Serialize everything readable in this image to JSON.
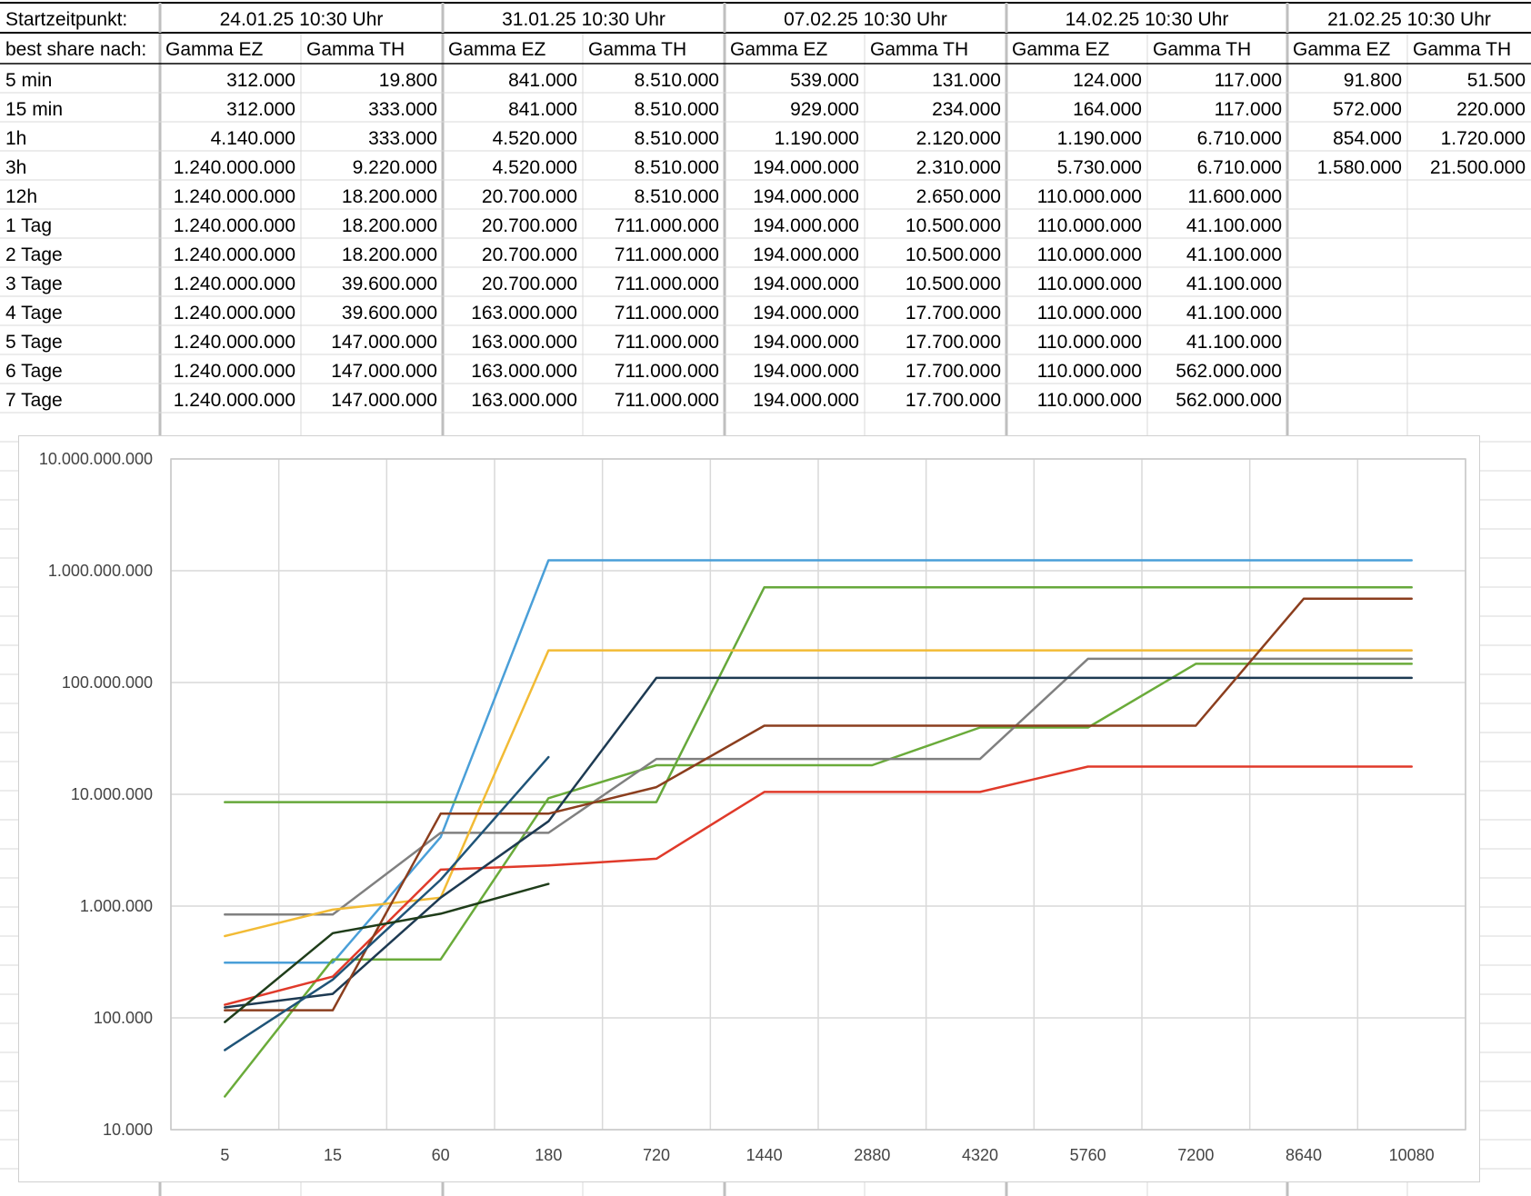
{
  "sheet": {
    "row1_label": "Startzeitpunkt:",
    "row2_label": "best share nach:",
    "start_dates": [
      "24.01.25 10:30 Uhr",
      "31.01.25 10:30 Uhr",
      "07.02.25 10:30 Uhr",
      "14.02.25 10:30 Uhr",
      "21.02.25 10:30 Uhr"
    ],
    "col_headers": [
      "Gamma  EZ",
      "Gamma TH",
      "Gamma  EZ",
      "Gamma TH",
      "Gamma  EZ",
      "Gamma TH",
      "Gamma  EZ",
      "Gamma TH",
      "Gamma  EZ",
      "Gamma TH"
    ],
    "rows": [
      {
        "label": "5 min",
        "values": [
          "312.000",
          "19.800",
          "841.000",
          "8.510.000",
          "539.000",
          "131.000",
          "124.000",
          "117.000",
          "91.800",
          "51.500"
        ]
      },
      {
        "label": "15 min",
        "values": [
          "312.000",
          "333.000",
          "841.000",
          "8.510.000",
          "929.000",
          "234.000",
          "164.000",
          "117.000",
          "572.000",
          "220.000"
        ]
      },
      {
        "label": "1h",
        "values": [
          "4.140.000",
          "333.000",
          "4.520.000",
          "8.510.000",
          "1.190.000",
          "2.120.000",
          "1.190.000",
          "6.710.000",
          "854.000",
          "1.720.000"
        ]
      },
      {
        "label": "3h",
        "values": [
          "1.240.000.000",
          "9.220.000",
          "4.520.000",
          "8.510.000",
          "194.000.000",
          "2.310.000",
          "5.730.000",
          "6.710.000",
          "1.580.000",
          "21.500.000"
        ]
      },
      {
        "label": "12h",
        "values": [
          "1.240.000.000",
          "18.200.000",
          "20.700.000",
          "8.510.000",
          "194.000.000",
          "2.650.000",
          "110.000.000",
          "11.600.000",
          "",
          ""
        ]
      },
      {
        "label": "1 Tag",
        "values": [
          "1.240.000.000",
          "18.200.000",
          "20.700.000",
          "711.000.000",
          "194.000.000",
          "10.500.000",
          "110.000.000",
          "41.100.000",
          "",
          ""
        ]
      },
      {
        "label": "2 Tage",
        "values": [
          "1.240.000.000",
          "18.200.000",
          "20.700.000",
          "711.000.000",
          "194.000.000",
          "10.500.000",
          "110.000.000",
          "41.100.000",
          "",
          ""
        ]
      },
      {
        "label": "3 Tage",
        "values": [
          "1.240.000.000",
          "39.600.000",
          "20.700.000",
          "711.000.000",
          "194.000.000",
          "10.500.000",
          "110.000.000",
          "41.100.000",
          "",
          ""
        ]
      },
      {
        "label": "4 Tage",
        "values": [
          "1.240.000.000",
          "39.600.000",
          "163.000.000",
          "711.000.000",
          "194.000.000",
          "17.700.000",
          "110.000.000",
          "41.100.000",
          "",
          ""
        ]
      },
      {
        "label": "5 Tage",
        "values": [
          "1.240.000.000",
          "147.000.000",
          "163.000.000",
          "711.000.000",
          "194.000.000",
          "17.700.000",
          "110.000.000",
          "41.100.000",
          "",
          ""
        ]
      },
      {
        "label": "6 Tage",
        "values": [
          "1.240.000.000",
          "147.000.000",
          "163.000.000",
          "711.000.000",
          "194.000.000",
          "17.700.000",
          "110.000.000",
          "562.000.000",
          "",
          ""
        ]
      },
      {
        "label": "7 Tage",
        "values": [
          "1.240.000.000",
          "147.000.000",
          "163.000.000",
          "711.000.000",
          "194.000.000",
          "17.700.000",
          "110.000.000",
          "562.000.000",
          "",
          ""
        ]
      }
    ]
  },
  "chart_data": {
    "type": "line",
    "title": "",
    "xlabel": "",
    "ylabel": "",
    "x_scale": "category",
    "y_scale": "log10",
    "ylim": [
      10000,
      10000000000
    ],
    "y_tick_values": [
      10000,
      100000,
      1000000,
      10000000,
      100000000,
      1000000000,
      10000000000
    ],
    "y_tick_labels": [
      "10.000",
      "100.000",
      "1.000.000",
      "10.000.000",
      "100.000.000",
      "1.000.000.000",
      "10.000.000.000"
    ],
    "grid": true,
    "legend": "none",
    "categories": [
      "5",
      "15",
      "60",
      "180",
      "720",
      "1440",
      "2880",
      "4320",
      "5760",
      "7200",
      "8640",
      "10080"
    ],
    "series": [
      {
        "color": "#4a9fd8",
        "values": [
          312000,
          312000,
          4140000,
          1240000000,
          1240000000,
          1240000000,
          1240000000,
          1240000000,
          1240000000,
          1240000000,
          1240000000,
          1240000000
        ]
      },
      {
        "color": "#6aab3a",
        "values": [
          19800,
          333000,
          333000,
          9220000,
          18200000,
          18200000,
          18200000,
          39600000,
          39600000,
          147000000,
          147000000,
          147000000
        ]
      },
      {
        "color": "#808080",
        "values": [
          841000,
          841000,
          4520000,
          4520000,
          20700000,
          20700000,
          20700000,
          20700000,
          163000000,
          163000000,
          163000000,
          163000000
        ]
      },
      {
        "color": "#66a83b",
        "values": [
          8510000,
          8510000,
          8510000,
          8510000,
          8510000,
          711000000,
          711000000,
          711000000,
          711000000,
          711000000,
          711000000,
          711000000
        ]
      },
      {
        "color": "#f2bb35",
        "values": [
          539000,
          929000,
          1190000,
          194000000,
          194000000,
          194000000,
          194000000,
          194000000,
          194000000,
          194000000,
          194000000,
          194000000
        ]
      },
      {
        "color": "#e03a2a",
        "values": [
          131000,
          234000,
          2120000,
          2310000,
          2650000,
          10500000,
          10500000,
          10500000,
          17700000,
          17700000,
          17700000,
          17700000
        ]
      },
      {
        "color": "#1d3a52",
        "values": [
          124000,
          164000,
          1190000,
          5730000,
          110000000,
          110000000,
          110000000,
          110000000,
          110000000,
          110000000,
          110000000,
          110000000
        ]
      },
      {
        "color": "#8b3e1e",
        "values": [
          117000,
          117000,
          6710000,
          6710000,
          11600000,
          41100000,
          41100000,
          41100000,
          41100000,
          41100000,
          562000000,
          562000000
        ]
      },
      {
        "color": "#1f5478",
        "values": [
          51500,
          220000,
          1720000,
          21500000,
          null,
          null,
          null,
          null,
          null,
          null,
          null,
          null
        ]
      },
      {
        "color": "#1f3d1a",
        "values": [
          91800,
          572000,
          854000,
          1580000,
          null,
          null,
          null,
          null,
          null,
          null,
          null,
          null
        ]
      }
    ]
  }
}
